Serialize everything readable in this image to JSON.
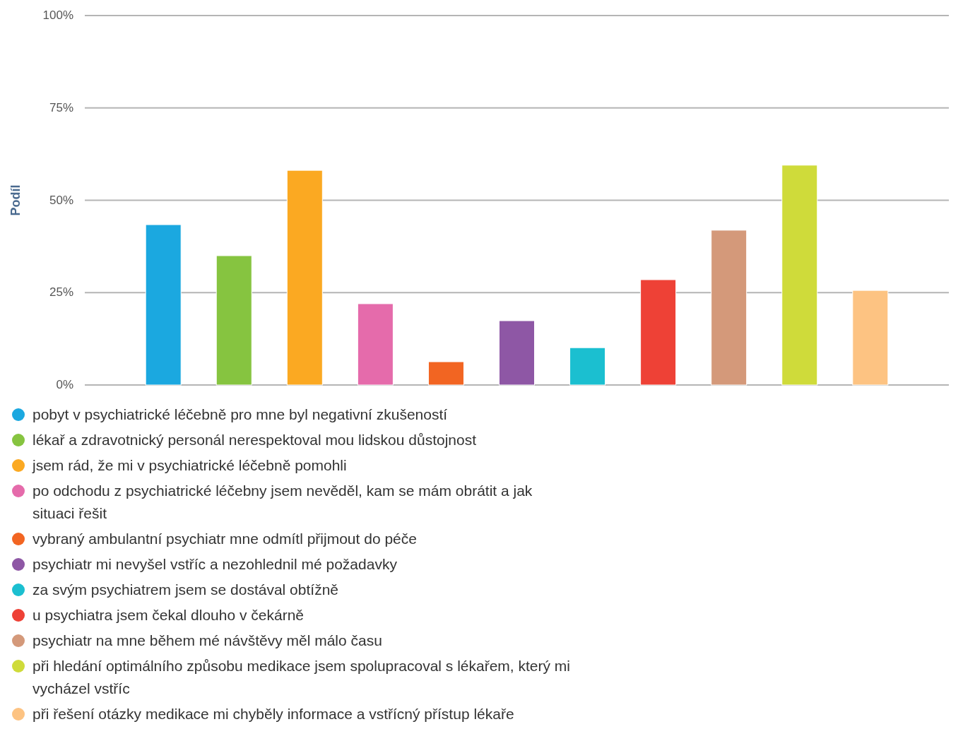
{
  "chart_data": {
    "type": "bar",
    "ylabel": "Podíl",
    "categories": [
      null
    ],
    "series": [
      {
        "name": "pobyt v psychiatrické léčebně pro mne byl negativní zkušeností",
        "color": "#1ba8e0",
        "values": [
          43.4
        ]
      },
      {
        "name": "lékař a zdravotnický personál nerespektoval mou lidskou důstojnost",
        "color": "#86c440",
        "values": [
          35
        ]
      },
      {
        "name": "jsem rád, že mi v psychiatrické léčebně pomohli",
        "color": "#fba922",
        "values": [
          58.1
        ]
      },
      {
        "name": "po odchodu z psychiatrické léčebny jsem nevěděl, kam se mám obrátit a jak situaci řešit",
        "color": "#e56bab",
        "values": [
          22
        ]
      },
      {
        "name": "vybraný ambulantní psychiatr mne odmítl přijmout do péče",
        "color": "#f26522",
        "values": [
          6.3
        ]
      },
      {
        "name": "psychiatr mi nevyšel vstříc a nezohlednil mé požadavky",
        "color": "#8e57a5",
        "values": [
          17.4
        ]
      },
      {
        "name": "za svým psychiatrem jsem se dostával obtížně",
        "color": "#1bbfd0",
        "values": [
          10.1
        ]
      },
      {
        "name": "u psychiatra jsem čekal dlouho v čekárně",
        "color": "#ee4136",
        "values": [
          28.5
        ]
      },
      {
        "name": "psychiatr na mne během mé návštěvy měl málo času",
        "color": "#d4997a",
        "values": [
          41.9
        ]
      },
      {
        "name": "při hledání optimálního způsobu medikace jsem spolupracoval s lékařem, který mi vycházel vstříc",
        "color": "#cfdb3a",
        "values": [
          59.5
        ]
      },
      {
        "name": "při řešení otázky medikace mi chyběly informace a vstřícný přístup lékaře",
        "color": "#fdc382",
        "values": [
          25.6
        ]
      }
    ],
    "ylim": [
      0,
      100
    ],
    "yticks": [
      {
        "value": 0,
        "label": "0%"
      },
      {
        "value": 25,
        "label": "25%"
      },
      {
        "value": 50,
        "label": "50%"
      },
      {
        "value": 75,
        "label": "75%"
      },
      {
        "value": 100,
        "label": "100%"
      }
    ],
    "grid": "y",
    "legend": "bottom"
  }
}
